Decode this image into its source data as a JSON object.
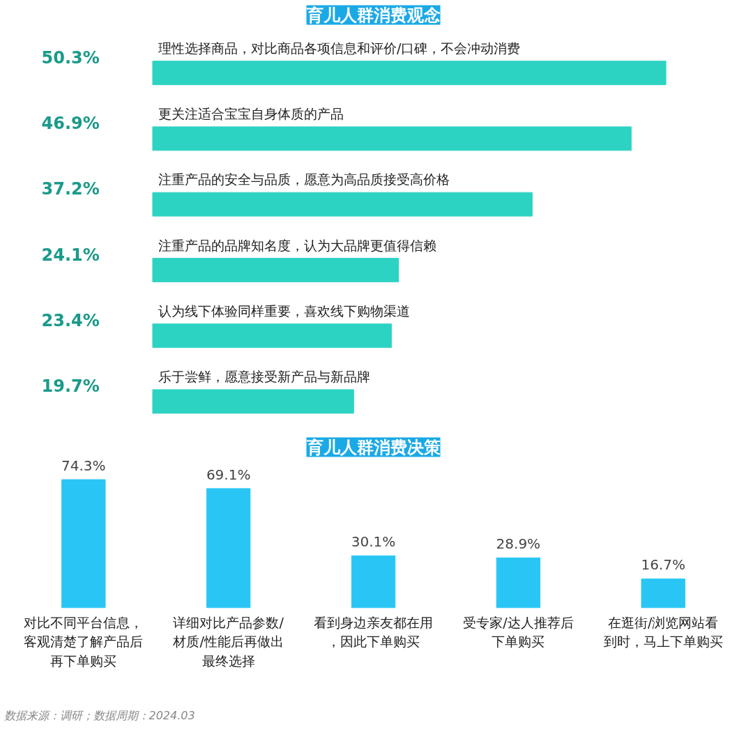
{
  "chart_data": [
    {
      "type": "bar",
      "orientation": "horizontal",
      "title": "育儿人群消费观念",
      "categories": [
        "理性选择商品，对比商品各项信息和评价/口碑，不会冲动消费",
        "更关注适合宝宝自身体质的产品",
        "注重产品的安全与品质，愿意为高品质接受高价格",
        "注重产品的品牌知名度，认为大品牌更值得信赖",
        "认为线下体验同样重要，喜欢线下购物渠道",
        "乐于尝鲜，愿意接受新产品与新品牌"
      ],
      "values": [
        50.3,
        46.9,
        37.2,
        24.1,
        23.4,
        19.7
      ],
      "value_labels": [
        "50.3%",
        "46.9%",
        "37.2%",
        "24.1%",
        "23.4%",
        "19.7%"
      ],
      "color": "#2dd3c2",
      "grid": false
    },
    {
      "type": "bar",
      "title": "育儿人群消费决策",
      "categories": [
        "对比不同平台信息，客观清楚了解产品后再下单购买",
        "详细对比产品参数/材质/性能后再做出最终选择",
        "看到身边亲友都在用，因此下单购买",
        "受专家/达人推荐后下单购买",
        "在逛街/浏览网站看到时，马上下单购买"
      ],
      "values": [
        74.3,
        69.1,
        30.1,
        28.9,
        16.7
      ],
      "value_labels": [
        "74.3%",
        "69.1%",
        "30.1%",
        "28.9%",
        "16.7%"
      ],
      "color": "#29c6f5",
      "grid": false,
      "annotations": [
        "数据来源：调研；数据周期：2024.03"
      ]
    }
  ]
}
